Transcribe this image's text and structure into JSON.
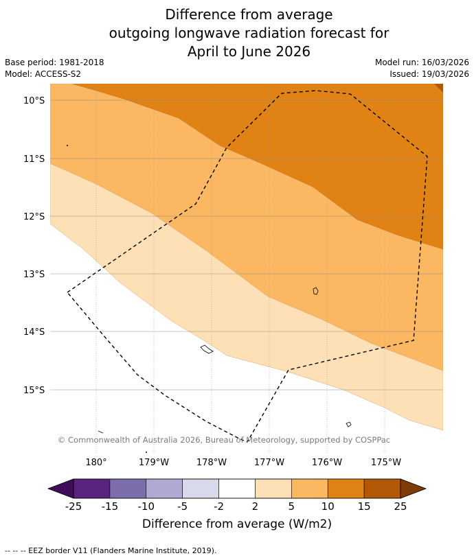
{
  "title": {
    "line1": "Difference from average",
    "line2": "outgoing longwave radiation forecast for",
    "line3": "April to June 2026"
  },
  "meta_left": {
    "base_period": "Base period: 1981-2018",
    "model": "Model: ACCESS-S2"
  },
  "meta_right": {
    "model_run": "Model run: 16/03/2026",
    "issued": "Issued: 19/03/2026"
  },
  "map": {
    "lat_labels": [
      "10°S",
      "11°S",
      "12°S",
      "13°S",
      "14°S",
      "15°S"
    ],
    "lon_labels": [
      "180°",
      "179°W",
      "178°W",
      "177°W",
      "176°W",
      "175°W"
    ],
    "copyright": "© Commonwealth of Australia 2026, Bureau of Meteorology, supported by COSPPac"
  },
  "legend": {
    "ticks": [
      "-25",
      "-15",
      "-10",
      "-5",
      "-2",
      "2",
      "5",
      "10",
      "15",
      "25"
    ],
    "colors": [
      "#3f0d59",
      "#59237f",
      "#7e6dab",
      "#b0a9d2",
      "#d9d9ec",
      "#ffffff",
      "#fde0b5",
      "#fbb762",
      "#e08214",
      "#b35806",
      "#7f3b08"
    ],
    "label": "Difference from average (W/m2)"
  },
  "footer": "--  --  -- EEZ border V11 (Flanders Marine Institute, 2019)."
}
